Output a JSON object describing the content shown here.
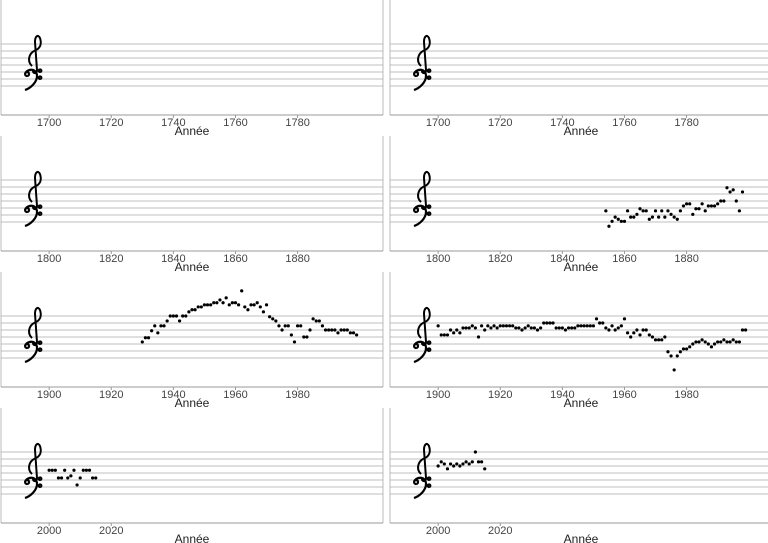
{
  "chart_data": [
    {
      "type": "scatter",
      "xlabel": "Année",
      "xlim": [
        1684.5,
        1807.5
      ],
      "xticks": [
        1700,
        1720,
        1740,
        1760,
        1780
      ],
      "ylim": [
        -4.14,
        12.29
      ],
      "staff_lines": [
        0,
        1,
        2,
        3,
        4,
        5,
        6
      ],
      "color": "#000000",
      "x": [],
      "values": []
    },
    {
      "type": "scatter",
      "xlabel": "Année",
      "xlim": [
        1684.5,
        1807.5
      ],
      "xticks": [
        1700,
        1720,
        1740,
        1760,
        1780
      ],
      "ylim": [
        -4.14,
        12.29
      ],
      "staff_lines": [
        0,
        1,
        2,
        3,
        4,
        5,
        6
      ],
      "color": "#000000",
      "x": [],
      "values": []
    },
    {
      "type": "scatter",
      "xlabel": "Année",
      "xlim": [
        1784.5,
        1907.5
      ],
      "xticks": [
        1800,
        1820,
        1840,
        1860,
        1880
      ],
      "ylim": [
        -4.14,
        12.29
      ],
      "staff_lines": [
        0,
        1,
        2,
        3,
        4,
        5,
        6
      ],
      "color": "#000000",
      "x": [],
      "values": []
    },
    {
      "type": "scatter",
      "xlabel": "Année",
      "xlim": [
        1784.5,
        1907.5
      ],
      "xticks": [
        1800,
        1820,
        1840,
        1860,
        1880
      ],
      "ylim": [
        -4.14,
        12.29
      ],
      "staff_lines": [
        0,
        1,
        2,
        3,
        4,
        5,
        6
      ],
      "color": "#000000",
      "x": [
        1854,
        1855,
        1856,
        1857,
        1858,
        1859,
        1860,
        1861,
        1862,
        1863,
        1864,
        1865,
        1866,
        1867,
        1868,
        1869,
        1870,
        1871,
        1872,
        1873,
        1874,
        1875,
        1876,
        1877,
        1878,
        1879,
        1880,
        1881,
        1882,
        1883,
        1884,
        1885,
        1886,
        1887,
        1888,
        1889,
        1890,
        1891,
        1892,
        1893,
        1894,
        1895,
        1896,
        1897,
        1898
      ],
      "values": [
        1.6,
        -0.6,
        0.1,
        0.7,
        0.4,
        0.1,
        0.1,
        1.6,
        0.7,
        0.7,
        1.1,
        1.9,
        1.6,
        1.6,
        0.4,
        0.7,
        1.6,
        0.7,
        1.6,
        0.7,
        1.6,
        1.1,
        0.7,
        0.4,
        1.6,
        2.3,
        2.6,
        2.6,
        1.1,
        1.9,
        1.9,
        2.6,
        1.6,
        2.3,
        2.3,
        2.3,
        2.6,
        3.0,
        3.0,
        4.9,
        4.3,
        4.6,
        3.0,
        1.6,
        4.3
      ]
    },
    {
      "type": "scatter",
      "xlabel": "Année",
      "xlim": [
        1884.5,
        2007.5
      ],
      "xticks": [
        1900,
        1920,
        1940,
        1960,
        1980
      ],
      "ylim": [
        -4.14,
        12.29
      ],
      "staff_lines": [
        0,
        1,
        2,
        3,
        4,
        5,
        6
      ],
      "color": "#000000",
      "x": [
        1930,
        1931,
        1932,
        1933,
        1934,
        1935,
        1936,
        1937,
        1938,
        1939,
        1940,
        1941,
        1942,
        1943,
        1944,
        1945,
        1946,
        1947,
        1948,
        1949,
        1950,
        1951,
        1952,
        1953,
        1954,
        1955,
        1956,
        1957,
        1958,
        1959,
        1960,
        1961,
        1962,
        1963,
        1964,
        1965,
        1966,
        1967,
        1968,
        1969,
        1970,
        1971,
        1972,
        1973,
        1974,
        1975,
        1976,
        1977,
        1978,
        1979,
        1980,
        1981,
        1982,
        1983,
        1984,
        1985,
        1986,
        1987,
        1988,
        1989,
        1990,
        1991,
        1992,
        1993,
        1994,
        1995,
        1996,
        1997,
        1998,
        1999
      ],
      "values": [
        2.3,
        2.9,
        2.9,
        3.9,
        4.6,
        3.6,
        4.6,
        4.6,
        5.3,
        6.0,
        6.0,
        6.0,
        5.3,
        6.0,
        6.0,
        6.6,
        6.9,
        6.9,
        7.3,
        7.3,
        7.6,
        7.6,
        7.6,
        7.9,
        7.9,
        8.3,
        7.9,
        8.6,
        7.6,
        7.9,
        7.9,
        7.6,
        9.6,
        7.3,
        6.9,
        7.6,
        7.6,
        7.9,
        7.3,
        6.6,
        7.6,
        5.9,
        5.6,
        5.3,
        4.6,
        4.0,
        4.6,
        4.6,
        3.3,
        2.3,
        4.6,
        4.6,
        3.0,
        3.0,
        4.0,
        5.6,
        5.3,
        5.3,
        4.6,
        4.0,
        4.0,
        4.0,
        4.0,
        3.6,
        4.0,
        4.0,
        4.0,
        3.6,
        3.6,
        3.3
      ]
    },
    {
      "type": "scatter",
      "xlabel": "Année",
      "xlim": [
        1884.5,
        2007.5
      ],
      "xticks": [
        1900,
        1920,
        1940,
        1960,
        1980
      ],
      "ylim": [
        -4.14,
        12.29
      ],
      "staff_lines": [
        0,
        1,
        2,
        3,
        4,
        5,
        6
      ],
      "color": "#000000",
      "x": [
        1900,
        1901,
        1902,
        1903,
        1904,
        1905,
        1906,
        1907,
        1908,
        1909,
        1910,
        1911,
        1912,
        1913,
        1914,
        1915,
        1916,
        1917,
        1918,
        1919,
        1920,
        1921,
        1922,
        1923,
        1924,
        1925,
        1926,
        1927,
        1928,
        1929,
        1930,
        1931,
        1932,
        1933,
        1934,
        1935,
        1936,
        1937,
        1938,
        1939,
        1940,
        1941,
        1942,
        1943,
        1944,
        1945,
        1946,
        1947,
        1948,
        1949,
        1950,
        1951,
        1952,
        1953,
        1954,
        1955,
        1956,
        1957,
        1958,
        1959,
        1960,
        1961,
        1962,
        1963,
        1964,
        1965,
        1966,
        1967,
        1968,
        1969,
        1970,
        1971,
        1972,
        1973,
        1974,
        1975,
        1976,
        1977,
        1978,
        1979,
        1980,
        1981,
        1982,
        1983,
        1984,
        1985,
        1986,
        1987,
        1988,
        1989,
        1990,
        1991,
        1992,
        1993,
        1994,
        1995,
        1996,
        1997,
        1998,
        1999
      ],
      "values": [
        4.6,
        3.3,
        3.3,
        3.3,
        4.0,
        3.6,
        4.0,
        3.6,
        4.3,
        4.3,
        4.3,
        4.6,
        4.3,
        3.0,
        4.6,
        4.0,
        4.6,
        4.3,
        4.6,
        4.3,
        4.6,
        4.6,
        4.6,
        4.6,
        4.6,
        4.3,
        4.3,
        4.0,
        4.3,
        4.6,
        4.3,
        4.3,
        4.0,
        4.3,
        5.0,
        5.0,
        5.0,
        5.0,
        4.3,
        4.3,
        4.3,
        4.0,
        4.3,
        4.3,
        4.3,
        4.6,
        4.6,
        4.6,
        4.6,
        4.6,
        4.6,
        5.6,
        5.0,
        5.0,
        4.3,
        4.0,
        4.6,
        4.0,
        4.3,
        4.6,
        5.6,
        3.6,
        3.0,
        3.6,
        4.0,
        3.3,
        4.0,
        4.0,
        3.3,
        3.0,
        2.6,
        2.6,
        2.6,
        3.0,
        0.9,
        0.3,
        -1.7,
        0.3,
        0.9,
        1.3,
        1.3,
        1.6,
        2.0,
        2.3,
        2.3,
        2.6,
        2.3,
        2.0,
        1.6,
        2.0,
        2.3,
        2.3,
        2.6,
        2.3,
        2.3,
        2.6,
        2.3,
        2.3,
        4.0,
        4.0
      ]
    },
    {
      "type": "scatter",
      "xlabel": "Année",
      "xlim": [
        1984.5,
        2107.5
      ],
      "xticks": [
        2000,
        2020
      ],
      "ylim": [
        -4.14,
        12.29
      ],
      "staff_lines": [
        0,
        1,
        2,
        3,
        4,
        5,
        6
      ],
      "color": "#000000",
      "x": [
        2000,
        2001,
        2002,
        2003,
        2004,
        2005,
        2006,
        2007,
        2008,
        2009,
        2010,
        2011,
        2012,
        2013,
        2014,
        2015
      ],
      "values": [
        3.4,
        3.4,
        3.4,
        2.3,
        2.3,
        3.4,
        2.3,
        2.6,
        3.4,
        1.3,
        2.3,
        3.4,
        3.4,
        3.4,
        2.3,
        2.3
      ]
    },
    {
      "type": "scatter",
      "xlabel": "Année",
      "xlim": [
        1984.5,
        2107.5
      ],
      "xticks": [
        2000,
        2020
      ],
      "ylim": [
        -4.14,
        12.29
      ],
      "staff_lines": [
        0,
        1,
        2,
        3,
        4,
        5,
        6
      ],
      "color": "#000000",
      "x": [
        2000,
        2001,
        2002,
        2003,
        2004,
        2005,
        2006,
        2007,
        2008,
        2009,
        2010,
        2011,
        2012,
        2013,
        2014,
        2015
      ],
      "values": [
        4.0,
        4.6,
        4.3,
        3.6,
        4.3,
        4.0,
        4.3,
        4.0,
        4.3,
        4.6,
        4.3,
        4.6,
        6.0,
        4.6,
        4.6,
        3.6
      ]
    }
  ]
}
